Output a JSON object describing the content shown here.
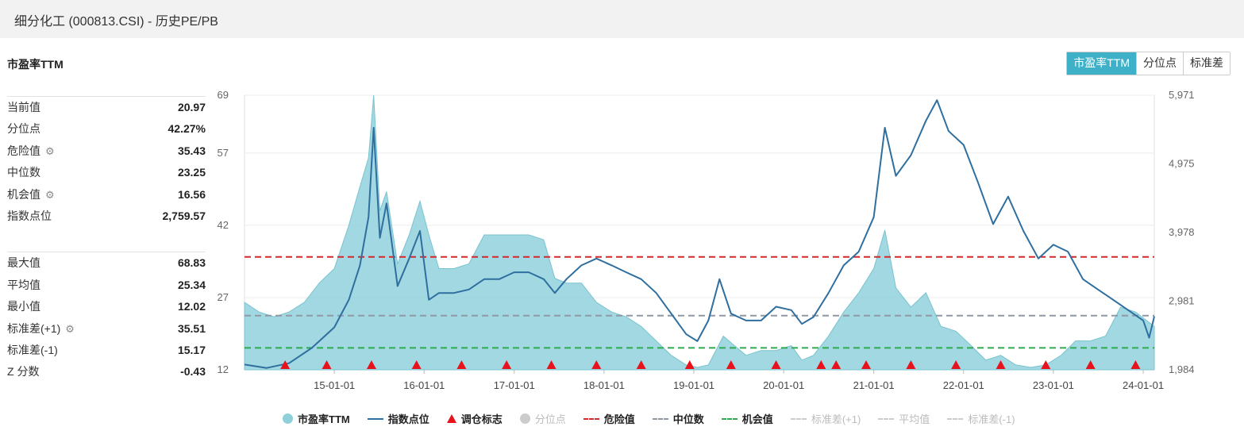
{
  "header": {
    "title": "细分化工 (000813.CSI) - 历史PE/PB"
  },
  "section_title": "市盈率TTM",
  "buttons": [
    {
      "label": "市盈率TTM",
      "active": true
    },
    {
      "label": "分位点",
      "active": false
    },
    {
      "label": "标准差",
      "active": false
    }
  ],
  "stats_top": [
    {
      "label": "当前值",
      "value": "20.97",
      "gear": false
    },
    {
      "label": "分位点",
      "value": "42.27%",
      "gear": false
    },
    {
      "label": "危险值",
      "value": "35.43",
      "gear": true
    },
    {
      "label": "中位数",
      "value": "23.25",
      "gear": false
    },
    {
      "label": "机会值",
      "value": "16.56",
      "gear": true
    },
    {
      "label": "指数点位",
      "value": "2,759.57",
      "gear": false
    }
  ],
  "stats_bottom": [
    {
      "label": "最大值",
      "value": "68.83",
      "gear": false
    },
    {
      "label": "平均值",
      "value": "25.34",
      "gear": false
    },
    {
      "label": "最小值",
      "value": "12.02",
      "gear": false
    },
    {
      "label": "标准差(+1)",
      "value": "35.51",
      "gear": true
    },
    {
      "label": "标准差(-1)",
      "value": "15.17",
      "gear": false
    },
    {
      "label": "Z 分数",
      "value": "-0.43",
      "gear": false
    }
  ],
  "legend": [
    {
      "label": "市盈率TTM",
      "marker": "dot",
      "color": "#8ed0da",
      "active": true
    },
    {
      "label": "指数点位",
      "marker": "line",
      "color": "#2f6f9f",
      "active": true
    },
    {
      "label": "调仓标志",
      "marker": "triangle",
      "color": "#e8121c",
      "active": true
    },
    {
      "label": "分位点",
      "marker": "dot",
      "color": "#cccccc",
      "active": false
    },
    {
      "label": "危险值",
      "marker": "dash",
      "color": "#d4282c",
      "active": true
    },
    {
      "label": "中位数",
      "marker": "dash",
      "color": "#8f99a6",
      "active": true
    },
    {
      "label": "机会值",
      "marker": "dash",
      "color": "#2eaa50",
      "active": true
    },
    {
      "label": "标准差(+1)",
      "marker": "dash",
      "color": "#cccccc",
      "active": false
    },
    {
      "label": "平均值",
      "marker": "dash",
      "color": "#cccccc",
      "active": false
    },
    {
      "label": "标准差(-1)",
      "marker": "dash",
      "color": "#cccccc",
      "active": false
    }
  ],
  "chart_data": {
    "type": "area",
    "x_range": [
      "2014-01-01",
      "2024-02-15"
    ],
    "x_ticks": [
      "15-01-01",
      "16-01-01",
      "17-01-01",
      "18-01-01",
      "19-01-01",
      "20-01-01",
      "21-01-01",
      "22-01-01",
      "23-01-01",
      "24-01-01"
    ],
    "y_left_ticks": [
      12,
      27,
      42,
      57,
      69
    ],
    "y_left_range": [
      12,
      69
    ],
    "y_right_ticks": [
      "1,984",
      "2,981",
      "3,978",
      "4,975",
      "5,971"
    ],
    "y_right_range": [
      1984,
      5971
    ],
    "reference_lines": [
      {
        "name": "危险值",
        "value": 35.43,
        "color": "#d4282c"
      },
      {
        "name": "中位数",
        "value": 23.25,
        "color": "#8f99a6"
      },
      {
        "name": "机会值",
        "value": 16.56,
        "color": "#2eaa50"
      }
    ],
    "series": [
      {
        "name": "市盈率TTM",
        "kind": "area",
        "color": "#8ed0da",
        "points": [
          [
            "2014-01-01",
            26
          ],
          [
            "2014-03-01",
            24
          ],
          [
            "2014-05-01",
            23
          ],
          [
            "2014-07-01",
            24
          ],
          [
            "2014-09-01",
            26
          ],
          [
            "2014-11-01",
            30
          ],
          [
            "2015-01-01",
            33
          ],
          [
            "2015-03-01",
            42
          ],
          [
            "2015-04-15",
            50
          ],
          [
            "2015-05-20",
            56
          ],
          [
            "2015-06-10",
            69
          ],
          [
            "2015-07-05",
            45
          ],
          [
            "2015-08-01",
            49
          ],
          [
            "2015-09-15",
            34
          ],
          [
            "2015-11-01",
            40
          ],
          [
            "2015-12-15",
            47
          ],
          [
            "2016-01-20",
            40
          ],
          [
            "2016-03-01",
            33
          ],
          [
            "2016-05-01",
            33
          ],
          [
            "2016-07-01",
            34
          ],
          [
            "2016-09-01",
            40
          ],
          [
            "2016-11-01",
            40
          ],
          [
            "2017-01-01",
            40
          ],
          [
            "2017-03-01",
            40
          ],
          [
            "2017-05-01",
            39
          ],
          [
            "2017-06-15",
            31
          ],
          [
            "2017-08-01",
            30
          ],
          [
            "2017-10-01",
            30
          ],
          [
            "2017-12-01",
            26
          ],
          [
            "2018-02-01",
            24
          ],
          [
            "2018-04-01",
            23
          ],
          [
            "2018-06-01",
            21
          ],
          [
            "2018-08-01",
            18
          ],
          [
            "2018-10-01",
            15
          ],
          [
            "2018-12-01",
            13
          ],
          [
            "2019-01-15",
            12.5
          ],
          [
            "2019-03-01",
            13
          ],
          [
            "2019-05-01",
            19
          ],
          [
            "2019-06-15",
            17
          ],
          [
            "2019-08-01",
            15
          ],
          [
            "2019-10-01",
            16
          ],
          [
            "2019-12-01",
            16
          ],
          [
            "2020-02-01",
            17
          ],
          [
            "2020-03-15",
            14
          ],
          [
            "2020-05-01",
            15
          ],
          [
            "2020-07-01",
            19
          ],
          [
            "2020-09-01",
            24
          ],
          [
            "2020-11-01",
            28
          ],
          [
            "2021-01-01",
            33
          ],
          [
            "2021-02-15",
            41
          ],
          [
            "2021-04-01",
            29
          ],
          [
            "2021-06-01",
            25
          ],
          [
            "2021-08-01",
            28
          ],
          [
            "2021-10-01",
            21
          ],
          [
            "2021-12-01",
            20
          ],
          [
            "2022-02-01",
            17
          ],
          [
            "2022-04-01",
            14
          ],
          [
            "2022-06-01",
            15
          ],
          [
            "2022-08-01",
            13
          ],
          [
            "2022-10-01",
            12.5
          ],
          [
            "2022-12-01",
            13
          ],
          [
            "2023-02-01",
            15
          ],
          [
            "2023-04-01",
            18
          ],
          [
            "2023-06-01",
            18
          ],
          [
            "2023-08-01",
            19
          ],
          [
            "2023-10-01",
            25
          ],
          [
            "2023-12-01",
            24
          ],
          [
            "2024-02-15",
            21
          ]
        ]
      },
      {
        "name": "指数点位",
        "kind": "line",
        "color": "#2f6f9f",
        "points": [
          [
            "2014-01-01",
            2060
          ],
          [
            "2014-04-01",
            2010
          ],
          [
            "2014-07-01",
            2080
          ],
          [
            "2014-10-01",
            2300
          ],
          [
            "2015-01-01",
            2600
          ],
          [
            "2015-03-01",
            3000
          ],
          [
            "2015-04-15",
            3500
          ],
          [
            "2015-05-20",
            4200
          ],
          [
            "2015-06-10",
            5500
          ],
          [
            "2015-07-05",
            3900
          ],
          [
            "2015-08-01",
            4400
          ],
          [
            "2015-09-15",
            3200
          ],
          [
            "2015-11-01",
            3600
          ],
          [
            "2015-12-15",
            4000
          ],
          [
            "2016-01-20",
            3000
          ],
          [
            "2016-03-01",
            3100
          ],
          [
            "2016-05-01",
            3100
          ],
          [
            "2016-07-01",
            3150
          ],
          [
            "2016-09-01",
            3300
          ],
          [
            "2016-11-01",
            3300
          ],
          [
            "2017-01-01",
            3400
          ],
          [
            "2017-03-01",
            3400
          ],
          [
            "2017-05-01",
            3300
          ],
          [
            "2017-06-15",
            3100
          ],
          [
            "2017-08-01",
            3300
          ],
          [
            "2017-10-01",
            3500
          ],
          [
            "2017-12-01",
            3600
          ],
          [
            "2018-02-01",
            3500
          ],
          [
            "2018-04-01",
            3400
          ],
          [
            "2018-06-01",
            3300
          ],
          [
            "2018-08-01",
            3100
          ],
          [
            "2018-10-01",
            2800
          ],
          [
            "2018-12-01",
            2500
          ],
          [
            "2019-01-15",
            2400
          ],
          [
            "2019-03-01",
            2700
          ],
          [
            "2019-04-15",
            3300
          ],
          [
            "2019-06-01",
            2800
          ],
          [
            "2019-08-01",
            2700
          ],
          [
            "2019-10-01",
            2700
          ],
          [
            "2019-12-01",
            2900
          ],
          [
            "2020-02-01",
            2850
          ],
          [
            "2020-03-15",
            2650
          ],
          [
            "2020-05-01",
            2750
          ],
          [
            "2020-07-01",
            3100
          ],
          [
            "2020-09-01",
            3500
          ],
          [
            "2020-11-01",
            3700
          ],
          [
            "2021-01-01",
            4200
          ],
          [
            "2021-02-15",
            5500
          ],
          [
            "2021-04-01",
            4800
          ],
          [
            "2021-06-01",
            5100
          ],
          [
            "2021-08-01",
            5600
          ],
          [
            "2021-09-15",
            5900
          ],
          [
            "2021-11-01",
            5450
          ],
          [
            "2022-01-01",
            5250
          ],
          [
            "2022-03-01",
            4700
          ],
          [
            "2022-05-01",
            4100
          ],
          [
            "2022-07-01",
            4500
          ],
          [
            "2022-09-01",
            4000
          ],
          [
            "2022-11-01",
            3600
          ],
          [
            "2023-01-01",
            3800
          ],
          [
            "2023-03-01",
            3700
          ],
          [
            "2023-05-01",
            3300
          ],
          [
            "2023-07-01",
            3150
          ],
          [
            "2023-09-01",
            3000
          ],
          [
            "2023-11-01",
            2850
          ],
          [
            "2024-01-01",
            2700
          ],
          [
            "2024-01-25",
            2450
          ],
          [
            "2024-02-15",
            2760
          ]
        ]
      },
      {
        "name": "调仓标志",
        "kind": "marker",
        "color": "#e8121c",
        "points": [
          "2014-06-15",
          "2014-12-01",
          "2015-06-01",
          "2015-12-01",
          "2016-06-01",
          "2016-12-01",
          "2017-06-01",
          "2017-12-01",
          "2018-06-01",
          "2018-12-15",
          "2019-06-01",
          "2019-12-01",
          "2020-06-01",
          "2020-08-01",
          "2020-12-01",
          "2021-06-01",
          "2021-12-01",
          "2022-06-01",
          "2022-12-01",
          "2023-06-01",
          "2023-12-01"
        ]
      }
    ]
  }
}
